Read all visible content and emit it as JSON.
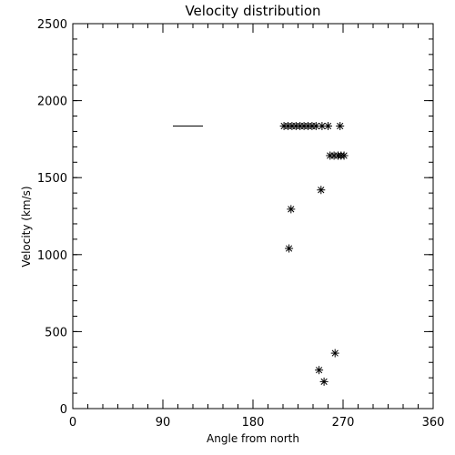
{
  "chart_data": {
    "type": "scatter",
    "title": "Velocity distribution",
    "xlabel": "Angle from north",
    "ylabel": "Velocity (km/s)",
    "xlim": [
      0,
      360
    ],
    "ylim": [
      0,
      2500
    ],
    "xticks": [
      0,
      90,
      180,
      270,
      360
    ],
    "yticks": [
      0,
      500,
      1000,
      1500,
      2000,
      2500
    ],
    "marker": "asterisk",
    "grid": false,
    "points": [
      {
        "x": 211,
        "y": 1835
      },
      {
        "x": 215,
        "y": 1835
      },
      {
        "x": 219,
        "y": 1835
      },
      {
        "x": 223,
        "y": 1835
      },
      {
        "x": 227,
        "y": 1835
      },
      {
        "x": 231,
        "y": 1835
      },
      {
        "x": 235,
        "y": 1835
      },
      {
        "x": 239,
        "y": 1835
      },
      {
        "x": 243,
        "y": 1835
      },
      {
        "x": 249,
        "y": 1835
      },
      {
        "x": 255,
        "y": 1835
      },
      {
        "x": 267,
        "y": 1835
      },
      {
        "x": 257,
        "y": 1643
      },
      {
        "x": 261,
        "y": 1643
      },
      {
        "x": 265,
        "y": 1643
      },
      {
        "x": 268,
        "y": 1643
      },
      {
        "x": 271,
        "y": 1643
      },
      {
        "x": 248,
        "y": 1420
      },
      {
        "x": 218,
        "y": 1295
      },
      {
        "x": 216,
        "y": 1040
      },
      {
        "x": 262,
        "y": 360
      },
      {
        "x": 246,
        "y": 250
      },
      {
        "x": 251,
        "y": 175
      }
    ],
    "segments": [
      {
        "x1": 100,
        "x2": 130,
        "y": 1835
      }
    ]
  }
}
